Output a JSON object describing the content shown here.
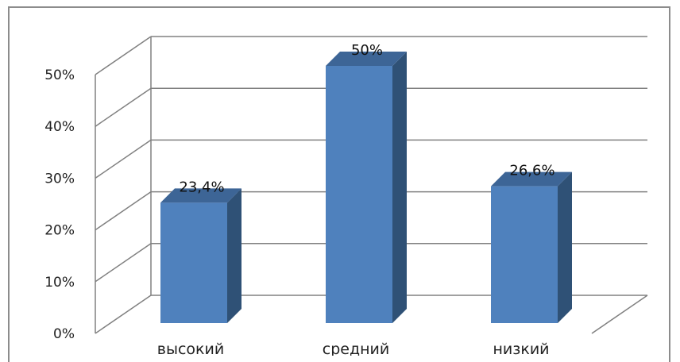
{
  "chart_data": {
    "type": "bar",
    "title": "",
    "xlabel": "",
    "ylabel": "",
    "categories": [
      "высокий",
      "средний",
      "низкий"
    ],
    "values": [
      23.4,
      50,
      26.6
    ],
    "data_labels": [
      "23,4%",
      "50%",
      "26,6%"
    ],
    "y_ticks": [
      "0%",
      "10%",
      "20%",
      "30%",
      "40%",
      "50%"
    ],
    "ylim": [
      0,
      50
    ],
    "grid": true,
    "three_d": true,
    "colors": {
      "bar_front": "#4f81bd",
      "bar_side": "#2f5176",
      "bar_top": "#3d6596",
      "grid": "#808080"
    }
  }
}
